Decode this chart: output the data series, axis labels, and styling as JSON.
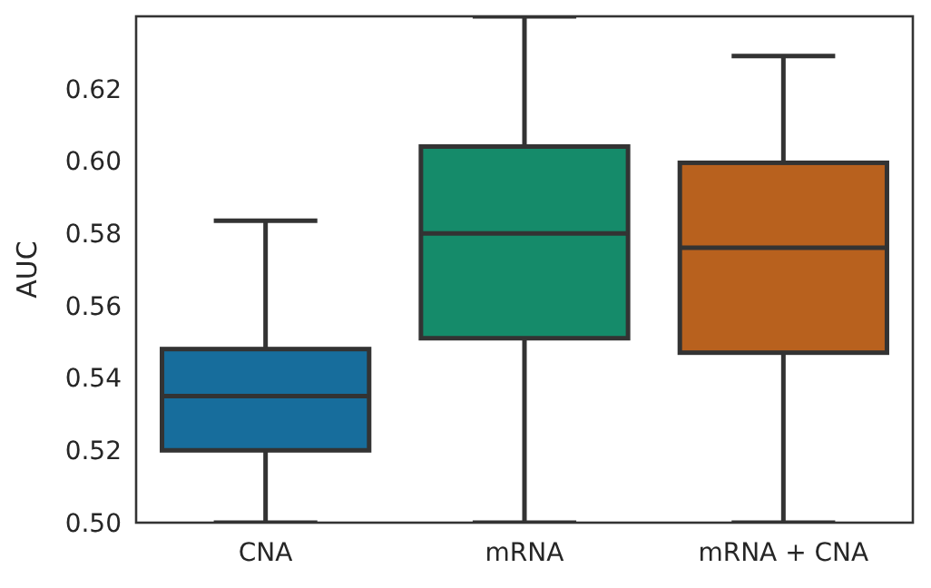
{
  "chart_data": {
    "type": "box",
    "ylabel": "AUC",
    "categories": [
      "CNA",
      "mRNA",
      "mRNA + CNA"
    ],
    "colors": [
      "#176d9c",
      "#158b6a",
      "#b8611e"
    ],
    "boxes": [
      {
        "low": 0.5,
        "q1": 0.52,
        "median": 0.535,
        "q3": 0.548,
        "high": 0.5835
      },
      {
        "low": 0.5,
        "q1": 0.551,
        "median": 0.58,
        "q3": 0.604,
        "high": 0.64
      },
      {
        "low": 0.5,
        "q1": 0.547,
        "median": 0.576,
        "q3": 0.5995,
        "high": 0.629
      }
    ],
    "ylim": [
      0.5,
      0.64
    ],
    "yticks": [
      {
        "value": 0.5,
        "label": "0.50"
      },
      {
        "value": 0.52,
        "label": "0.52"
      },
      {
        "value": 0.54,
        "label": "0.54"
      },
      {
        "value": 0.56,
        "label": "0.56"
      },
      {
        "value": 0.58,
        "label": "0.58"
      },
      {
        "value": 0.6,
        "label": "0.60"
      },
      {
        "value": 0.62,
        "label": "0.62"
      }
    ],
    "grid": false
  }
}
